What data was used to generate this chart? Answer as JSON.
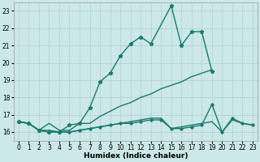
{
  "xlabel": "Humidex (Indice chaleur)",
  "bg_color": "#cce8e8",
  "grid_color": "#b0d0d0",
  "line_color": "#1a7a6e",
  "xlim": [
    -0.5,
    23.5
  ],
  "ylim": [
    15.5,
    23.5
  ],
  "yticks": [
    16,
    17,
    18,
    19,
    20,
    21,
    22,
    23
  ],
  "xticks": [
    0,
    1,
    2,
    3,
    4,
    5,
    6,
    7,
    8,
    9,
    10,
    11,
    12,
    13,
    14,
    15,
    16,
    17,
    18,
    19,
    20,
    21,
    22,
    23
  ],
  "series": [
    {
      "x": [
        0,
        1,
        2,
        3,
        4,
        5,
        6,
        7,
        8,
        9,
        10,
        11,
        12,
        13,
        15,
        16,
        17,
        18,
        19
      ],
      "y": [
        16.6,
        16.5,
        16.1,
        16.0,
        16.0,
        16.4,
        16.5,
        17.4,
        18.9,
        19.4,
        20.4,
        21.1,
        21.5,
        21.1,
        23.3,
        21.0,
        21.8,
        21.8,
        19.5
      ],
      "marker": "*",
      "markersize": 3.5,
      "linewidth": 1.0
    },
    {
      "x": [
        0,
        1,
        2,
        3,
        4,
        5,
        6,
        7,
        8,
        9,
        10,
        11,
        12,
        13,
        14,
        15,
        16,
        17,
        18,
        19
      ],
      "y": [
        16.6,
        16.5,
        16.1,
        16.5,
        16.1,
        16.1,
        16.5,
        16.5,
        16.9,
        17.2,
        17.5,
        17.7,
        18.0,
        18.2,
        18.5,
        18.7,
        18.9,
        19.2,
        19.4,
        19.6
      ],
      "marker": null,
      "markersize": 0,
      "linewidth": 1.0
    },
    {
      "x": [
        0,
        1,
        2,
        3,
        4,
        5,
        6,
        7,
        8,
        9,
        10,
        11,
        12,
        13,
        14,
        15,
        16,
        17,
        18,
        19,
        20,
        21,
        22,
        23
      ],
      "y": [
        16.6,
        16.5,
        16.1,
        16.1,
        16.0,
        16.0,
        16.1,
        16.2,
        16.3,
        16.4,
        16.5,
        16.6,
        16.7,
        16.8,
        16.8,
        16.2,
        16.3,
        16.4,
        16.5,
        16.6,
        16.0,
        16.7,
        16.5,
        16.4
      ],
      "marker": null,
      "markersize": 0,
      "linewidth": 1.0
    },
    {
      "x": [
        0,
        1,
        2,
        3,
        4,
        5,
        6,
        7,
        8,
        9,
        10,
        11,
        12,
        13,
        14,
        15,
        16,
        17,
        18,
        19,
        20,
        21,
        22,
        23
      ],
      "y": [
        16.6,
        16.5,
        16.1,
        16.0,
        16.0,
        16.0,
        16.1,
        16.2,
        16.3,
        16.4,
        16.5,
        16.5,
        16.6,
        16.7,
        16.7,
        16.2,
        16.2,
        16.3,
        16.4,
        17.6,
        16.0,
        16.8,
        16.5,
        16.4
      ],
      "marker": "D",
      "markersize": 1.8,
      "linewidth": 1.0
    }
  ]
}
